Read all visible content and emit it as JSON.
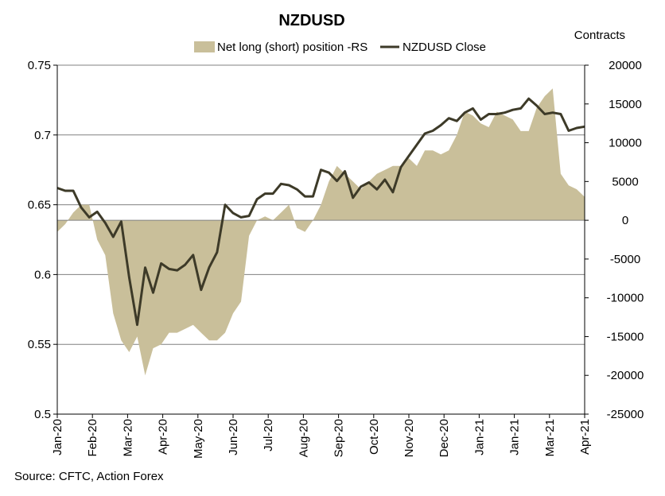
{
  "chart_data": {
    "type": "area+line",
    "title": "NZDUSD",
    "right_axis_label": "Contracts",
    "source": "Source: CFTC, Action Forex",
    "colors": {
      "area": "#c9bf9a",
      "line": "#3d3a28",
      "grid": "#808080",
      "axis": "#000000"
    },
    "legend": [
      {
        "name": "Net long (short) position -RS",
        "kind": "area"
      },
      {
        "name": "NZDUSD Close",
        "kind": "line"
      }
    ],
    "y_left": {
      "min": 0.5,
      "max": 0.75,
      "ticks": [
        "0.75",
        "0.7",
        "0.65",
        "0.6",
        "0.55",
        "0.5"
      ],
      "tick_values": [
        0.75,
        0.7,
        0.65,
        0.6,
        0.55,
        0.5
      ]
    },
    "y_right": {
      "min": -25000,
      "max": 20000,
      "ticks": [
        "20000",
        "15000",
        "10000",
        "5000",
        "0",
        "-5000",
        "-10000",
        "-15000",
        "-20000",
        "-25000"
      ],
      "tick_values": [
        20000,
        15000,
        10000,
        5000,
        0,
        -5000,
        -10000,
        -15000,
        -20000,
        -25000
      ]
    },
    "x_labels": [
      "Jan-20",
      "Feb-20",
      "Mar-20",
      "Apr-20",
      "May-20",
      "Jun-20",
      "Jul-20",
      "Aug-20",
      "Sep-20",
      "Oct-20",
      "Nov-20",
      "Dec-20",
      "Jan-21",
      "Jan-21",
      "Mar-21",
      "Apr-21"
    ],
    "weeks": 67,
    "series": [
      {
        "name": "Net long (short) position -RS",
        "axis": "right",
        "values": [
          -1500,
          -500,
          1000,
          2000,
          2000,
          -2500,
          -4500,
          -12000,
          -15500,
          -17000,
          -15000,
          -20000,
          -16500,
          -16000,
          -14500,
          -14500,
          -14000,
          -13500,
          -14500,
          -15500,
          -15500,
          -14500,
          -12000,
          -10500,
          -2000,
          0,
          500,
          0,
          1000,
          2000,
          -1000,
          -1500,
          0,
          2000,
          5000,
          7000,
          6000,
          5000,
          4000,
          5000,
          6000,
          6500,
          7000,
          7000,
          8000,
          7000,
          9000,
          9000,
          8500,
          9000,
          11000,
          14000,
          13500,
          12500,
          12000,
          14000,
          13500,
          13000,
          11500,
          11500,
          14500,
          16000,
          17000,
          6000,
          4500,
          4000,
          3000
        ]
      },
      {
        "name": "NZDUSD Close",
        "axis": "left",
        "values": [
          0.662,
          0.66,
          0.66,
          0.648,
          0.641,
          0.645,
          0.637,
          0.627,
          0.638,
          0.598,
          0.564,
          0.605,
          0.587,
          0.608,
          0.604,
          0.603,
          0.607,
          0.614,
          0.589,
          0.605,
          0.616,
          0.65,
          0.644,
          0.641,
          0.642,
          0.654,
          0.658,
          0.658,
          0.665,
          0.664,
          0.661,
          0.656,
          0.656,
          0.675,
          0.673,
          0.667,
          0.674,
          0.655,
          0.663,
          0.666,
          0.661,
          0.668,
          0.659,
          0.677,
          0.685,
          0.693,
          0.701,
          0.703,
          0.707,
          0.712,
          0.71,
          0.716,
          0.719,
          0.711,
          0.715,
          0.715,
          0.716,
          0.718,
          0.719,
          0.726,
          0.721,
          0.715,
          0.716,
          0.715,
          0.703,
          0.705,
          0.706
        ]
      }
    ]
  }
}
